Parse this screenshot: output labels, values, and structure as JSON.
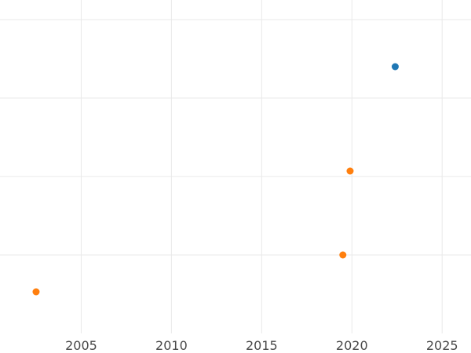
{
  "chart_data": {
    "type": "scatter",
    "title": "",
    "xlabel": "",
    "ylabel": "",
    "xlim": [
      2000.5,
      2026.6
    ],
    "ylim": [
      0,
      4.25
    ],
    "x_ticks": [
      2005,
      2010,
      2015,
      2020,
      2025
    ],
    "y_gridlines": [
      1,
      2,
      3,
      4
    ],
    "y_tick_labels_visible": false,
    "grid": true,
    "series": [
      {
        "color": "#1f77b4",
        "points": [
          {
            "x": 2022.4,
            "y": 3.4
          }
        ]
      },
      {
        "color": "#ff7f0e",
        "points": [
          {
            "x": 2019.9,
            "y": 2.07
          },
          {
            "x": 2019.5,
            "y": 1.0
          },
          {
            "x": 2002.5,
            "y": 0.53
          }
        ]
      }
    ]
  }
}
